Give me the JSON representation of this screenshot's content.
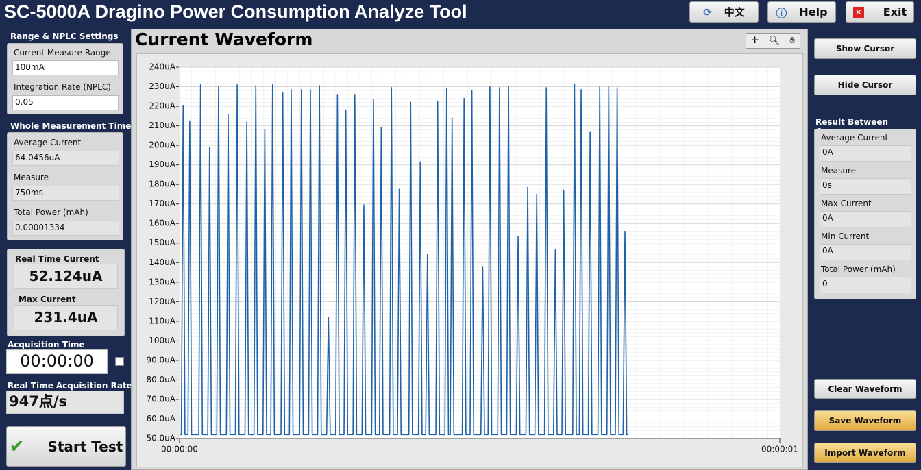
{
  "header": {
    "title": "SC-5000A Dragino Power Consumption Analyze Tool",
    "buttons": [
      "中文",
      "Help",
      "Exit"
    ]
  },
  "left_panel": {
    "range_settings": {
      "title": "Range & NPLC Settings",
      "fields": [
        {
          "label": "Current Measure Range",
          "value": "100mA"
        },
        {
          "label": "Integration Rate (NPLC)",
          "value": "0.05"
        }
      ]
    },
    "whole_measurement": {
      "title": "Whole Measurement Time",
      "fields": [
        {
          "label": "Average Current",
          "value": "64.0456uA"
        },
        {
          "label": "Measure",
          "value": "750ms"
        },
        {
          "label": "Total Power (mAh)",
          "value": "0.00001334"
        }
      ]
    },
    "real_time_current": {
      "label": "Real Time Current",
      "value": "52.124uA"
    },
    "max_current": {
      "label": "Max Current",
      "value": "231.4uA"
    },
    "acquisition_time": {
      "label": "Acquisition Time",
      "value": "00:00:00"
    },
    "acquisition_rate": {
      "label": "Real Time Acquisition Rate",
      "value": "947点/s"
    },
    "start_button": "Start Test"
  },
  "chart_data": {
    "type": "line",
    "title": "Current Waveform",
    "x": [
      0,
      0.003,
      0.006,
      0.009,
      0.014,
      0.017,
      0.02,
      0.032,
      0.035,
      0.038,
      0.047,
      0.05,
      0.053,
      0.062,
      0.065,
      0.068,
      0.078,
      0.081,
      0.084,
      0.093,
      0.096,
      0.099,
      0.109,
      0.112,
      0.115,
      0.124,
      0.127,
      0.13,
      0.139,
      0.142,
      0.145,
      0.152,
      0.155,
      0.158,
      0.169,
      0.172,
      0.175,
      0.183,
      0.186,
      0.189,
      0.2,
      0.203,
      0.206,
      0.215,
      0.218,
      0.221,
      0.23,
      0.233,
      0.236,
      0.245,
      0.248,
      0.251,
      0.26,
      0.263,
      0.266,
      0.274,
      0.277,
      0.28,
      0.289,
      0.292,
      0.295,
      0.304,
      0.307,
      0.31,
      0.32,
      0.323,
      0.326,
      0.333,
      0.336,
      0.339,
      0.35,
      0.353,
      0.356,
      0.363,
      0.366,
      0.369,
      0.382,
      0.385,
      0.388,
      0.398,
      0.401,
      0.404,
      0.41,
      0.413,
      0.416,
      0.427,
      0.43,
      0.433,
      0.442,
      0.445,
      0.448,
      0.451,
      0.454,
      0.457,
      0.471,
      0.474,
      0.477,
      0.484,
      0.487,
      0.49,
      0.502,
      0.505,
      0.508,
      0.514,
      0.517,
      0.52,
      0.53,
      0.533,
      0.536,
      0.545,
      0.548,
      0.551,
      0.561,
      0.564,
      0.567,
      0.577,
      0.58,
      0.583,
      0.592,
      0.595,
      0.598,
      0.608,
      0.611,
      0.614,
      0.623,
      0.626,
      0.629,
      0.637,
      0.64,
      0.643,
      0.655,
      0.658,
      0.661,
      0.666,
      0.669,
      0.672,
      0.681,
      0.684,
      0.687,
      0.697,
      0.7,
      0.703,
      0.712,
      0.715,
      0.718,
      0.726,
      0.729,
      0.732,
      0.739,
      0.742,
      0.745,
      0.748
    ],
    "series": [
      {
        "color": "#1f62a8",
        "values": [
          52,
          52,
          220.5,
          52,
          52,
          212.5,
          52,
          52,
          231,
          52,
          52,
          199,
          52,
          52,
          230,
          52,
          52,
          216,
          52,
          52,
          231,
          52,
          52,
          212,
          52,
          52,
          230.5,
          52,
          52,
          208,
          52,
          52,
          231,
          52,
          52,
          227,
          52,
          52,
          228.5,
          52,
          52,
          228.5,
          52,
          52,
          228.5,
          52,
          52,
          230.5,
          52,
          52,
          112,
          52,
          52,
          226,
          52,
          52,
          218,
          52,
          52,
          226,
          52,
          52,
          169.5,
          52,
          52,
          223.5,
          52,
          52,
          209,
          52,
          52,
          229.5,
          52,
          52,
          177.5,
          52,
          52,
          222,
          52,
          52,
          191.5,
          52,
          52,
          144,
          52,
          52,
          222.5,
          52,
          52,
          229,
          52,
          52,
          214,
          52,
          52,
          224,
          52,
          52,
          228,
          52,
          52,
          138,
          52,
          52,
          230,
          52,
          52,
          229.5,
          52,
          52,
          230,
          52,
          52,
          153.5,
          52,
          52,
          178.5,
          52,
          52,
          175,
          52,
          52,
          229.5,
          52,
          52,
          146.5,
          52,
          52,
          177,
          52,
          52,
          231.4,
          52,
          52,
          228.5,
          52,
          52,
          207,
          52,
          52,
          230,
          52,
          52,
          230,
          52,
          52,
          229.5,
          52,
          52,
          156,
          52,
          52
        ]
      }
    ],
    "xlim": [
      0,
      1
    ],
    "xticks": [
      {
        "value": 0,
        "label": "00:00:00"
      },
      {
        "value": 1,
        "label": "00:00:01"
      }
    ],
    "ylim": [
      50,
      240
    ],
    "yticks": [
      {
        "value": 240,
        "label": "240uA"
      },
      {
        "value": 230,
        "label": "230uA"
      },
      {
        "value": 220,
        "label": "220uA"
      },
      {
        "value": 210,
        "label": "210uA"
      },
      {
        "value": 200,
        "label": "200uA"
      },
      {
        "value": 190,
        "label": "190uA"
      },
      {
        "value": 180,
        "label": "180uA"
      },
      {
        "value": 170,
        "label": "170uA"
      },
      {
        "value": 160,
        "label": "160uA"
      },
      {
        "value": 150,
        "label": "150uA"
      },
      {
        "value": 140,
        "label": "140uA"
      },
      {
        "value": 130,
        "label": "130uA"
      },
      {
        "value": 120,
        "label": "120uA"
      },
      {
        "value": 110,
        "label": "110uA"
      },
      {
        "value": 100,
        "label": "100uA"
      },
      {
        "value": 90,
        "label": "90.0uA"
      },
      {
        "value": 80,
        "label": "80.0uA"
      },
      {
        "value": 70,
        "label": "70.0uA"
      },
      {
        "value": 60,
        "label": "60.0uA"
      },
      {
        "value": 50,
        "label": "50.0uA"
      }
    ],
    "grid": true
  },
  "right_panel": {
    "buttons": [
      "Show Cursor",
      "Hide Cursor"
    ],
    "results": {
      "title": "Result Between Cursors",
      "fields": [
        {
          "label": "Average Current",
          "value": "0A"
        },
        {
          "label": "Measure",
          "value": "0s"
        },
        {
          "label": "Max Current",
          "value": "0A"
        },
        {
          "label": "Min Current",
          "value": "0A"
        },
        {
          "label": "Total Power (mAh)",
          "value": "0"
        }
      ]
    },
    "bottom_buttons": [
      "Clear Waveform",
      "Save Waveform",
      "Import Waveform"
    ]
  }
}
